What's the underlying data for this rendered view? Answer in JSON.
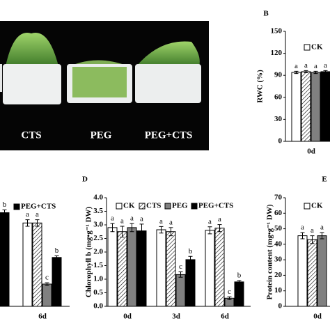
{
  "photo": {
    "labels": [
      "CTS",
      "PEG",
      "PEG+CTS"
    ]
  },
  "chart_data": [
    {
      "type": "bar",
      "panel": "B",
      "ylabel": "RWC (%)",
      "categories": [
        "0d"
      ],
      "ylim": [
        0,
        150
      ],
      "yticks": [
        0,
        30,
        60,
        90,
        120,
        150
      ],
      "series": [
        {
          "name": "CK",
          "color": "#ffffff",
          "values": [
            94
          ],
          "errors": [
            1.5
          ],
          "letters": [
            "a"
          ]
        },
        {
          "color": "#ffffff",
          "pattern": "hatch",
          "values": [
            95
          ],
          "errors": [
            1.5
          ],
          "letters": [
            "a"
          ]
        },
        {
          "color": "#808080",
          "values": [
            94
          ],
          "errors": [
            1.5
          ],
          "letters": [
            "a"
          ]
        },
        {
          "color": "#000000",
          "values": [
            95
          ],
          "errors": [
            1.5
          ],
          "letters": [
            "a"
          ]
        }
      ]
    },
    {
      "type": "bar",
      "categories": [
        null,
        "6d"
      ],
      "ylim": [
        0,
        4
      ],
      "series": [
        {
          "color": "#ffffff",
          "values": [
            null,
            3.07
          ],
          "errors": [
            null,
            0.12
          ],
          "letters": [
            null,
            "a"
          ]
        },
        {
          "color": "#ffffff",
          "pattern": "hatch",
          "values": [
            null,
            3.07
          ],
          "errors": [
            null,
            0.12
          ],
          "letters": [
            null,
            "a"
          ]
        },
        {
          "color": "#808080",
          "values": [
            null,
            0.82
          ],
          "errors": [
            null,
            0.05
          ],
          "letters": [
            null,
            "c"
          ]
        },
        {
          "name": "PEG+CTS",
          "color": "#000000",
          "values": [
            3.45,
            1.8
          ],
          "errors": [
            0.1,
            0.06
          ],
          "letters": [
            "b",
            "b"
          ]
        }
      ]
    },
    {
      "type": "bar",
      "panel": "D",
      "ylabel": "Chlorophyll b (mg•g⁻¹ DW)",
      "categories": [
        "0d",
        "3d",
        "6d"
      ],
      "ylim": [
        0,
        4
      ],
      "yticks": [
        {
          "value": 0,
          "label": "0.0"
        },
        0.5,
        {
          "value": 1,
          "label": "1.0"
        },
        1.5,
        {
          "value": 2,
          "label": "2.0"
        },
        2.5,
        {
          "value": 3,
          "label": "3.0"
        },
        3.5,
        {
          "value": 4,
          "label": "4.0"
        }
      ],
      "series": [
        {
          "name": "CK",
          "color": "#ffffff",
          "values": [
            2.9,
            2.82,
            2.8
          ],
          "errors": [
            0.15,
            0.12,
            0.13
          ],
          "letters": [
            "a",
            "a",
            "a"
          ]
        },
        {
          "name": "CTS",
          "color": "#ffffff",
          "pattern": "hatch",
          "values": [
            2.75,
            2.75,
            2.88
          ],
          "errors": [
            0.2,
            0.15,
            0.13
          ],
          "letters": [
            "a",
            "a",
            "a"
          ]
        },
        {
          "name": "PEG",
          "color": "#808080",
          "values": [
            2.9,
            1.17,
            0.3
          ],
          "errors": [
            0.15,
            0.1,
            0.05
          ],
          "letters": [
            "a",
            "c",
            "c"
          ]
        },
        {
          "name": "PEG+CTS",
          "color": "#000000",
          "values": [
            2.78,
            1.72,
            0.9
          ],
          "errors": [
            0.25,
            0.12,
            0.05
          ],
          "letters": [
            "a",
            "b",
            "b"
          ]
        }
      ]
    },
    {
      "type": "bar",
      "panel": "E",
      "ylabel": "Protein content (mg•g⁻¹ DW)",
      "categories": [
        "0d"
      ],
      "ylim": [
        0,
        70
      ],
      "yticks": [
        0,
        10,
        20,
        30,
        40,
        50,
        60,
        70
      ],
      "series": [
        {
          "name": "CK",
          "color": "#ffffff",
          "values": [
            45.5
          ],
          "errors": [
            2
          ],
          "letters": [
            "a"
          ]
        },
        {
          "color": "#ffffff",
          "pattern": "hatch",
          "values": [
            43
          ],
          "errors": [
            2.5
          ],
          "letters": [
            "a"
          ]
        },
        {
          "color": "#808080",
          "values": [
            45.5
          ],
          "errors": [
            2
          ],
          "letters": [
            "a"
          ]
        }
      ]
    }
  ]
}
